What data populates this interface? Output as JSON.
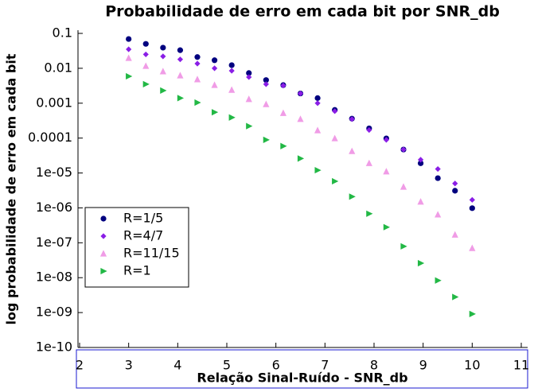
{
  "chart_data": {
    "type": "scatter",
    "title": "Probabilidade de erro em cada bit por SNR_db",
    "x_label": "Relação Sinal-Ruído - SNR_db",
    "y_label": "log probabilidade de erro em cada bit",
    "log_y": true,
    "legend": "lower-left",
    "xlim": [
      2,
      11
    ],
    "xticks": [
      2,
      3,
      4,
      5,
      6,
      7,
      8,
      9,
      10,
      11
    ],
    "ylim": [
      1e-10,
      0.1
    ],
    "yticks": [
      0.1,
      0.01,
      0.001,
      0.0001,
      {
        "value": 1e-05,
        "label": "1e-05"
      },
      {
        "value": 1e-06,
        "label": "1e-06"
      },
      {
        "value": 1e-07,
        "label": "1e-07"
      },
      {
        "value": 1e-08,
        "label": "1e-08"
      },
      {
        "value": 1e-09,
        "label": "1e-09"
      },
      {
        "value": 1e-10,
        "label": "1e-10"
      }
    ],
    "x": [
      3,
      3.35,
      3.7,
      4.05,
      4.4,
      4.75,
      5.1,
      5.45,
      5.8,
      6.15,
      6.5,
      6.85,
      7.2,
      7.55,
      7.9,
      8.25,
      8.6,
      8.95,
      9.3,
      9.65,
      10
    ],
    "series": [
      {
        "name": "R=1/5",
        "color": "#00007f",
        "marker": "circle",
        "values": [
          0.069,
          0.05,
          0.039,
          0.033,
          0.021,
          0.017,
          0.0123,
          0.0073,
          0.0046,
          0.0033,
          0.0019,
          0.0014,
          0.00064,
          0.00036,
          0.00019,
          9.8e-05,
          4.7e-05,
          1.9e-05,
          7.1e-06,
          3.1e-06,
          9.8e-07
        ]
      },
      {
        "name": "R=4/7",
        "color": "#8a1ee6",
        "marker": "diamond",
        "values": [
          0.035,
          0.025,
          0.022,
          0.018,
          0.0136,
          0.01,
          0.0085,
          0.0056,
          0.0035,
          0.0032,
          0.0019,
          0.001,
          0.00059,
          0.00035,
          0.00017,
          8.9e-05,
          4.7e-05,
          2.4e-05,
          1.3e-05,
          5e-06,
          1.7e-06
        ]
      },
      {
        "name": "R=11/15",
        "color": "#f09ce6",
        "marker": "triangle-up",
        "values": [
          0.0196,
          0.0116,
          0.0081,
          0.0062,
          0.0048,
          0.0033,
          0.0024,
          0.0013,
          0.00093,
          0.00052,
          0.00035,
          0.000166,
          9.8e-05,
          4.2e-05,
          1.9e-05,
          1.1e-05,
          4e-06,
          1.5e-06,
          6.4e-07,
          1.7e-07,
          7e-08
        ]
      },
      {
        "name": "R=1",
        "color": "#22b845",
        "marker": "triangle-right",
        "values": [
          0.0059,
          0.0035,
          0.0023,
          0.0014,
          0.00104,
          0.00055,
          0.00039,
          0.00022,
          8.9e-05,
          5.9e-05,
          2.6e-05,
          1.2e-05,
          5.8e-06,
          2.1e-06,
          6.8e-07,
          2.8e-07,
          7.9e-08,
          2.6e-08,
          8.3e-09,
          2.8e-09,
          9.1e-10
        ]
      }
    ]
  }
}
